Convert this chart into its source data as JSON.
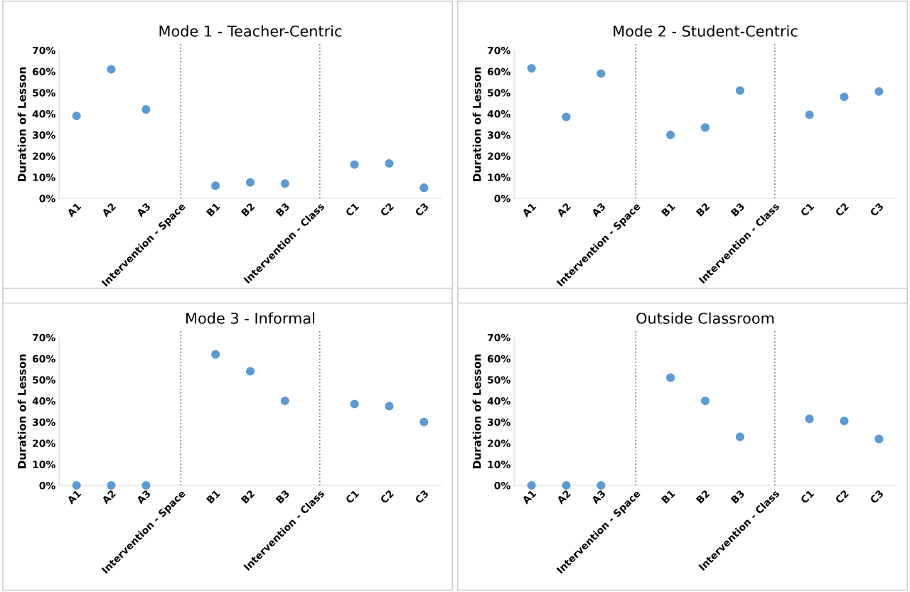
{
  "chart_data": [
    {
      "type": "scatter",
      "title": "Mode 1 - Teacher-Centric",
      "ylabel": "Duration of Lesson",
      "categories": [
        "A1",
        "A2",
        "A3",
        "Intervention - Space",
        "B1",
        "B2",
        "B3",
        "Intervention - Class",
        "C1",
        "C2",
        "C3"
      ],
      "series": [
        {
          "color": "#5b9bd5",
          "values": [
            39,
            61,
            42,
            null,
            6,
            7.5,
            7,
            null,
            16,
            16.5,
            5
          ]
        }
      ],
      "ylim": [
        0,
        70
      ],
      "yticks": [
        {
          "value": 0,
          "label": "0%"
        },
        {
          "value": 10,
          "label": "10%"
        },
        {
          "value": 20,
          "label": "20%"
        },
        {
          "value": 30,
          "label": "30%"
        },
        {
          "value": 40,
          "label": "40%"
        },
        {
          "value": 50,
          "label": "50%"
        },
        {
          "value": 60,
          "label": "60%"
        },
        {
          "value": 70,
          "label": "70%"
        }
      ],
      "ref_lines": [
        {
          "axis": "x",
          "value": "Intervention - Space",
          "color": "#808080",
          "line_style": "dotted"
        },
        {
          "axis": "x",
          "value": "Intervention - Class",
          "color": "#808080",
          "line_style": "dotted"
        }
      ],
      "marker": "circle",
      "grid": false,
      "legend": false
    },
    {
      "type": "scatter",
      "title": "Mode 2 - Student-Centric",
      "ylabel": "Duration of Lesson",
      "categories": [
        "A1",
        "A2",
        "A3",
        "Intervention - Space",
        "B1",
        "B2",
        "B3",
        "Intervention - Class",
        "C1",
        "C2",
        "C3"
      ],
      "series": [
        {
          "color": "#5b9bd5",
          "values": [
            61.5,
            38.5,
            59,
            null,
            30,
            33.5,
            51,
            null,
            39.5,
            48,
            50.5
          ]
        }
      ],
      "ylim": [
        0,
        70
      ],
      "yticks": [
        {
          "value": 0,
          "label": "0%"
        },
        {
          "value": 10,
          "label": "10%"
        },
        {
          "value": 20,
          "label": "20%"
        },
        {
          "value": 30,
          "label": "30%"
        },
        {
          "value": 40,
          "label": "40%"
        },
        {
          "value": 50,
          "label": "50%"
        },
        {
          "value": 60,
          "label": "60%"
        },
        {
          "value": 70,
          "label": "70%"
        }
      ],
      "ref_lines": [
        {
          "axis": "x",
          "value": "Intervention - Space",
          "color": "#808080",
          "line_style": "dotted"
        },
        {
          "axis": "x",
          "value": "Intervention - Class",
          "color": "#808080",
          "line_style": "dotted"
        }
      ],
      "marker": "circle",
      "grid": false,
      "legend": false
    },
    {
      "type": "scatter",
      "title": "Mode 3 - Informal",
      "ylabel": "Duration of Lesson",
      "categories": [
        "A1",
        "A2",
        "A3",
        "Intervention - Space",
        "B1",
        "B2",
        "B3",
        "Intervention - Class",
        "C1",
        "C2",
        "C3"
      ],
      "series": [
        {
          "color": "#5b9bd5",
          "values": [
            0,
            0,
            0,
            null,
            62,
            54,
            40,
            null,
            38.5,
            37.5,
            30
          ]
        }
      ],
      "ylim": [
        0,
        70
      ],
      "yticks": [
        {
          "value": 0,
          "label": "0%"
        },
        {
          "value": 10,
          "label": "10%"
        },
        {
          "value": 20,
          "label": "20%"
        },
        {
          "value": 30,
          "label": "30%"
        },
        {
          "value": 40,
          "label": "40%"
        },
        {
          "value": 50,
          "label": "50%"
        },
        {
          "value": 60,
          "label": "60%"
        },
        {
          "value": 70,
          "label": "70%"
        }
      ],
      "ref_lines": [
        {
          "axis": "x",
          "value": "Intervention - Space",
          "color": "#808080",
          "line_style": "dotted"
        },
        {
          "axis": "x",
          "value": "Intervention - Class",
          "color": "#808080",
          "line_style": "dotted"
        }
      ],
      "marker": "circle",
      "grid": false,
      "legend": false
    },
    {
      "type": "scatter",
      "title": "Outside Classroom",
      "ylabel": "Duration of Lesson",
      "categories": [
        "A1",
        "A2",
        "A3",
        "Intervention - Space",
        "B1",
        "B2",
        "B3",
        "Intervention - Class",
        "C1",
        "C2",
        "C3"
      ],
      "series": [
        {
          "color": "#5b9bd5",
          "values": [
            0,
            0,
            0,
            null,
            51,
            40,
            23,
            null,
            31.5,
            30.5,
            22
          ]
        }
      ],
      "ylim": [
        0,
        70
      ],
      "yticks": [
        {
          "value": 0,
          "label": "0%"
        },
        {
          "value": 10,
          "label": "10%"
        },
        {
          "value": 20,
          "label": "20%"
        },
        {
          "value": 30,
          "label": "30%"
        },
        {
          "value": 40,
          "label": "40%"
        },
        {
          "value": 50,
          "label": "50%"
        },
        {
          "value": 60,
          "label": "60%"
        },
        {
          "value": 70,
          "label": "70%"
        }
      ],
      "ref_lines": [
        {
          "axis": "x",
          "value": "Intervention - Space",
          "color": "#808080",
          "line_style": "dotted"
        },
        {
          "axis": "x",
          "value": "Intervention - Class",
          "color": "#808080",
          "line_style": "dotted"
        }
      ],
      "marker": "circle",
      "grid": false,
      "legend": false
    }
  ]
}
